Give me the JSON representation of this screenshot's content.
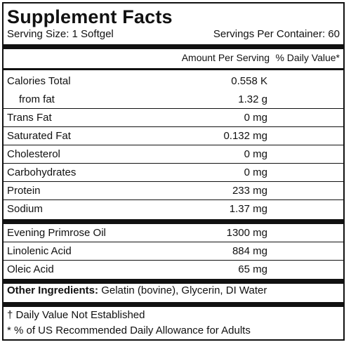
{
  "title": "Supplement Facts",
  "serving_size": "Serving Size: 1 Softgel",
  "servings_per_container": "Servings Per Container: 60",
  "columns": {
    "amount": "Amount Per Serving",
    "daily_value": "% Daily Value*"
  },
  "group1": [
    {
      "label": "Calories Total",
      "amount": "0.558 K"
    },
    {
      "label": "from fat",
      "amount": "1.32 g"
    },
    {
      "label": "Trans Fat",
      "amount": "0 mg"
    },
    {
      "label": "Saturated Fat",
      "amount": "0.132 mg"
    },
    {
      "label": "Cholesterol",
      "amount": "0 mg"
    },
    {
      "label": "Carbohydrates",
      "amount": "0 mg"
    },
    {
      "label": "Protein",
      "amount": "233 mg"
    },
    {
      "label": "Sodium",
      "amount": "1.37 mg"
    }
  ],
  "group2": [
    {
      "label": "Evening Primrose Oil",
      "amount": "1300 mg"
    },
    {
      "label": "Linolenic Acid",
      "amount": "884 mg"
    },
    {
      "label": "Oleic Acid",
      "amount": "65 mg"
    }
  ],
  "other_ingredients": {
    "label": "Other Ingredients:",
    "value": "Gelatin (bovine), Glycerin, DI Water"
  },
  "footnotes": [
    "† Daily Value Not Established",
    "* % of US Recommended Daily Allowance for Adults"
  ]
}
